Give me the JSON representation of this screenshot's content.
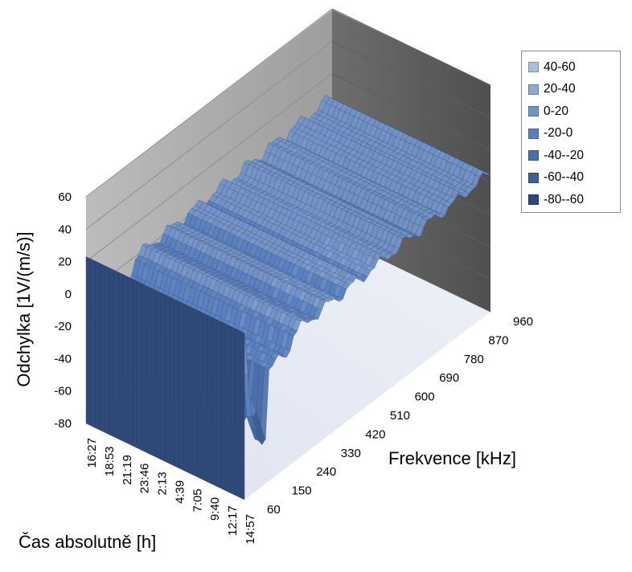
{
  "chart_data": {
    "type": "surface",
    "title": "",
    "zlabel": "Odchylka [1V/(m/s)]",
    "xlabel": "Frekvence [kHz]",
    "ylabel": "Čas absolutně [h]",
    "z_ticks": [
      "60",
      "40",
      "20",
      "0",
      "-20",
      "-40",
      "-60",
      "-80"
    ],
    "zlim": [
      -80,
      60
    ],
    "frequency_ticks": [
      "60",
      "150",
      "240",
      "330",
      "420",
      "510",
      "600",
      "690",
      "780",
      "870",
      "960"
    ],
    "time_ticks": [
      "16:27",
      "18:53",
      "21:19",
      "23:46",
      "2:13",
      "4:39",
      "7:05",
      "9:40",
      "12:17",
      "14:57"
    ],
    "grid": true,
    "legend_position": "top-right",
    "legend": [
      {
        "label": "40-60",
        "color": "#a9bfe0"
      },
      {
        "label": "20-40",
        "color": "#8ea9d6"
      },
      {
        "label": "0-20",
        "color": "#7393c8"
      },
      {
        "label": "-20-0",
        "color": "#5a80c0"
      },
      {
        "label": "-40--20",
        "color": "#4a6faa"
      },
      {
        "label": "-60--40",
        "color": "#3d5f96"
      },
      {
        "label": "-80--60",
        "color": "#2f4a78"
      }
    ]
  }
}
